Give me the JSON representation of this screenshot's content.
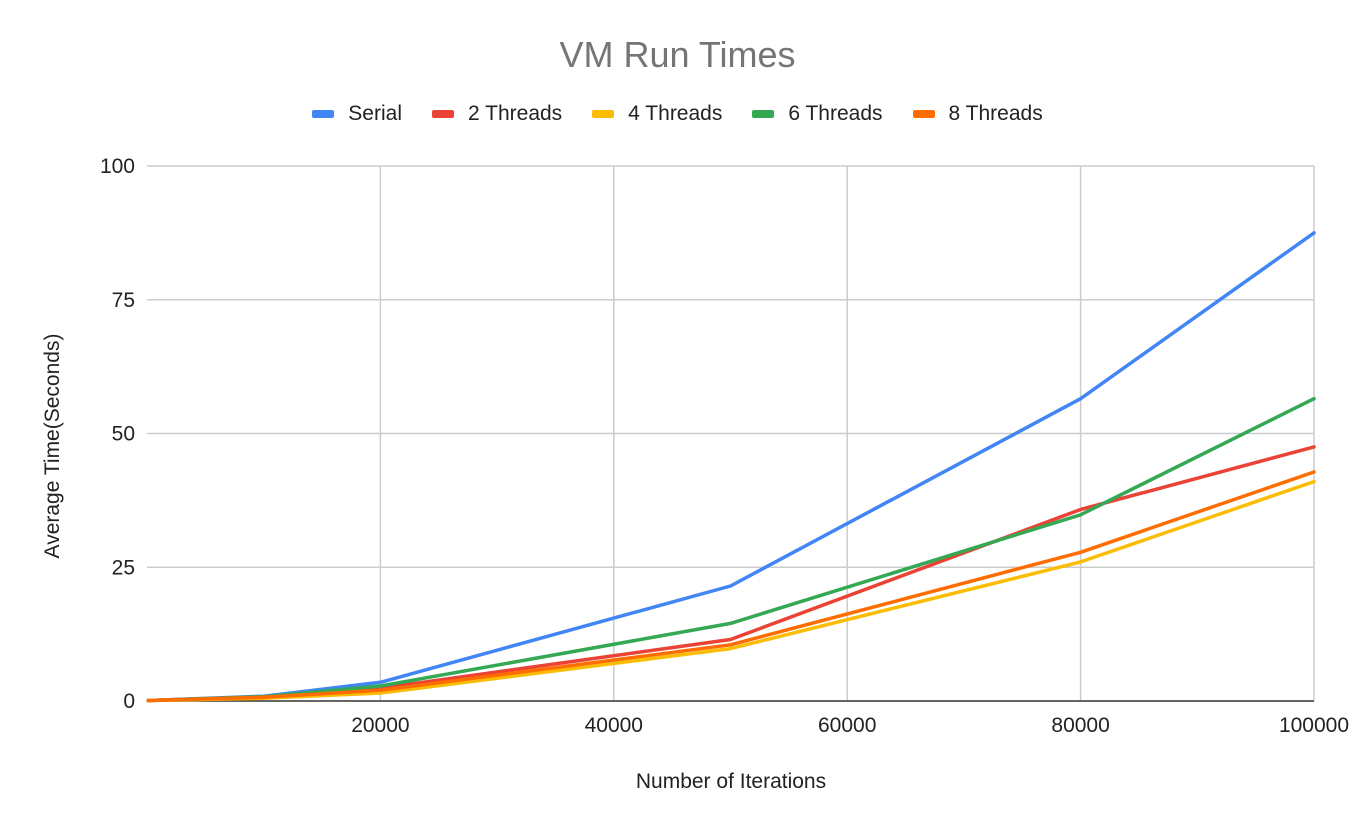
{
  "chart_data": {
    "type": "line",
    "title": "VM Run Times",
    "xlabel": "Number of Iterations",
    "ylabel": "Average Time(Seconds)",
    "xlim": [
      0,
      100000
    ],
    "ylim": [
      0,
      100
    ],
    "xticks": [
      20000,
      40000,
      60000,
      80000,
      100000
    ],
    "yticks": [
      0,
      25,
      50,
      75,
      100
    ],
    "grid": true,
    "legend_position": "top",
    "x": [
      100,
      10000,
      20000,
      50000,
      80000,
      100000
    ],
    "series": [
      {
        "name": "Serial",
        "color": "#4285f4",
        "values": [
          0.1,
          0.9,
          3.5,
          21.5,
          56.5,
          87.5
        ]
      },
      {
        "name": "2 Threads",
        "color": "#ea4335",
        "values": [
          0.1,
          0.8,
          2.4,
          11.5,
          35.8,
          47.5
        ]
      },
      {
        "name": "4 Threads",
        "color": "#fbbc04",
        "values": [
          0.1,
          0.5,
          1.5,
          9.8,
          26.0,
          41.0
        ]
      },
      {
        "name": "6 Threads",
        "color": "#34a853",
        "values": [
          0.1,
          0.8,
          2.8,
          14.5,
          34.8,
          56.5
        ]
      },
      {
        "name": "8 Threads",
        "color": "#ff6d01",
        "values": [
          0.1,
          0.7,
          2.0,
          10.5,
          27.8,
          42.8
        ]
      }
    ]
  }
}
